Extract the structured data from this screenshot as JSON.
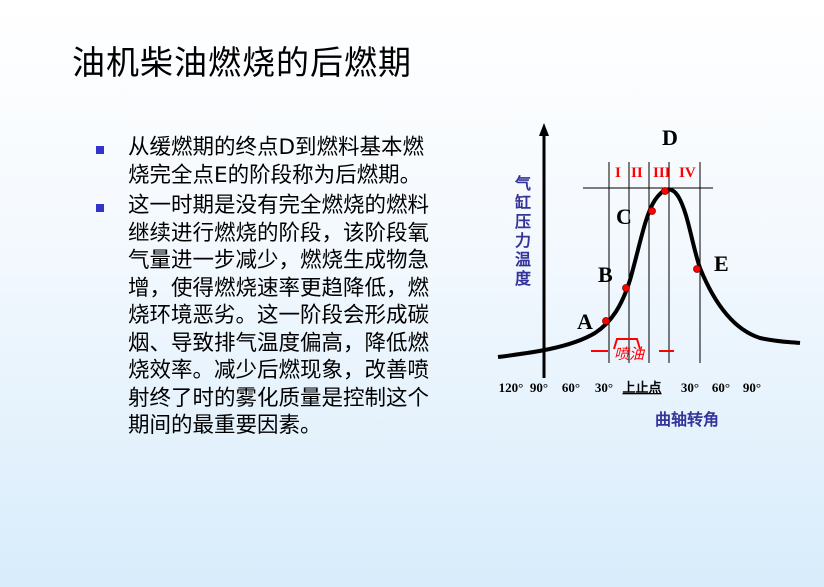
{
  "title": "油机柴油燃烧的后燃期",
  "bullets": [
    {
      "lines": [
        "从缓燃期的终点D到燃料基本燃",
        "烧完全点E的阶段称为后燃期。"
      ]
    },
    {
      "lines": [
        "这一时期是没有完全燃烧的燃料",
        "继续进行燃烧的阶段，该阶段氧",
        "气量进一步减少，燃烧生成物急",
        "增，使得燃烧速率更趋降低，燃",
        "烧环境恶劣。这一阶段会形成碳",
        "烟、导致排气温度偏高，降低燃",
        "烧效率。减少后燃现象，改善喷",
        "射终了时的雾化质量是控制这个",
        "期间的最重要因素。"
      ]
    }
  ],
  "diagram": {
    "y_axis_label": [
      "气",
      "缸",
      "压",
      "力",
      "温",
      "度"
    ],
    "x_axis_label": "曲轴转角",
    "x_ticks": [
      "120°",
      "90°",
      "60°",
      "30°",
      "上止点",
      "30°",
      "60°",
      "90°"
    ],
    "points": [
      "A",
      "B",
      "C",
      "D",
      "E"
    ],
    "phases": [
      "I",
      "II",
      "III",
      "IV"
    ],
    "injection_label": "喷油",
    "colors": {
      "curve": "#000000",
      "points": "#ff0000",
      "phases": "#ff0000",
      "axis_label": "#333399",
      "bullet": "#3333cc"
    }
  }
}
